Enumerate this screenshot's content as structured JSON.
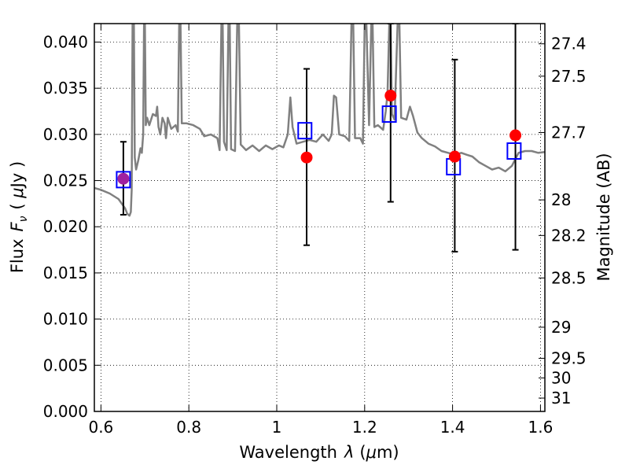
{
  "chart_data": {
    "type": "scatter",
    "xlabel": {
      "prefix": "Wavelength",
      "variable": "λ",
      "unit_open": "(",
      "unit_mu": "μ",
      "unit_rest": "m)"
    },
    "ylabel": {
      "prefix": "Flux",
      "variable": "F",
      "subscript": "ν",
      "unit_open": "( ",
      "unit_mu": "μ",
      "unit_rest": "Jy )"
    },
    "y2label": "Magnitude (AB)",
    "xlim": [
      0.585,
      1.61
    ],
    "ylim": [
      0.0,
      0.042
    ],
    "grid": true,
    "x_ticks": [
      {
        "value": 0.6,
        "label": "0.6"
      },
      {
        "value": 0.8,
        "label": "0.8"
      },
      {
        "value": 1.0,
        "label": "1"
      },
      {
        "value": 1.2,
        "label": "1.2"
      },
      {
        "value": 1.4,
        "label": "1.4"
      },
      {
        "value": 1.6,
        "label": "1.6"
      }
    ],
    "y_ticks": [
      {
        "value": 0.0,
        "label": "0.000"
      },
      {
        "value": 0.005,
        "label": "0.005"
      },
      {
        "value": 0.01,
        "label": "0.010"
      },
      {
        "value": 0.015,
        "label": "0.015"
      },
      {
        "value": 0.02,
        "label": "0.020"
      },
      {
        "value": 0.025,
        "label": "0.025"
      },
      {
        "value": 0.03,
        "label": "0.030"
      },
      {
        "value": 0.035,
        "label": "0.035"
      },
      {
        "value": 0.04,
        "label": "0.040"
      }
    ],
    "mag_ticks": [
      {
        "mag": 27.4,
        "label": "27.4"
      },
      {
        "mag": 27.5,
        "label": "27.5"
      },
      {
        "mag": 27.7,
        "label": "27.7"
      },
      {
        "mag": 28.0,
        "label": "28"
      },
      {
        "mag": 28.2,
        "label": "28.2"
      },
      {
        "mag": 28.5,
        "label": "28.5"
      },
      {
        "mag": 29.0,
        "label": "29"
      },
      {
        "mag": 29.5,
        "label": "29.5"
      },
      {
        "mag": 30.0,
        "label": "30"
      },
      {
        "mag": 31.0,
        "label": "31"
      }
    ],
    "colors": {
      "model": "#808080",
      "observed": "#ff0000",
      "model_band": "#0000ff",
      "error": "#000000",
      "overlap": "#a020a0"
    },
    "observed": [
      {
        "x": 0.651,
        "y": 0.0252,
        "yerr_low": 0.0213,
        "yerr_high": 0.0292
      },
      {
        "x": 1.068,
        "y": 0.0275,
        "yerr_low": 0.018,
        "yerr_high": 0.0371
      },
      {
        "x": 1.259,
        "y": 0.0342,
        "yerr_low": 0.0227,
        "yerr_high": 0.042
      },
      {
        "x": 1.405,
        "y": 0.0276,
        "yerr_low": 0.0173,
        "yerr_high": 0.0381
      },
      {
        "x": 1.543,
        "y": 0.0299,
        "yerr_low": 0.0175,
        "yerr_high": 0.042
      }
    ],
    "model_bands": [
      {
        "x": 0.651,
        "y": 0.0251
      },
      {
        "x": 1.064,
        "y": 0.0304
      },
      {
        "x": 1.256,
        "y": 0.0322
      },
      {
        "x": 1.402,
        "y": 0.0265
      },
      {
        "x": 1.54,
        "y": 0.0282
      }
    ],
    "model_spectrum": [
      [
        0.585,
        0.0242
      ],
      [
        0.6,
        0.024
      ],
      [
        0.62,
        0.0236
      ],
      [
        0.64,
        0.023
      ],
      [
        0.655,
        0.022
      ],
      [
        0.66,
        0.0214
      ],
      [
        0.665,
        0.0212
      ],
      [
        0.668,
        0.0216
      ],
      [
        0.67,
        0.024
      ],
      [
        0.672,
        0.042
      ],
      [
        0.675,
        0.042
      ],
      [
        0.677,
        0.0275
      ],
      [
        0.68,
        0.0262
      ],
      [
        0.685,
        0.0272
      ],
      [
        0.69,
        0.0285
      ],
      [
        0.693,
        0.028
      ],
      [
        0.696,
        0.03
      ],
      [
        0.698,
        0.042
      ],
      [
        0.7,
        0.042
      ],
      [
        0.702,
        0.031
      ],
      [
        0.705,
        0.0318
      ],
      [
        0.71,
        0.031
      ],
      [
        0.718,
        0.0322
      ],
      [
        0.725,
        0.032
      ],
      [
        0.728,
        0.033
      ],
      [
        0.731,
        0.0308
      ],
      [
        0.735,
        0.03
      ],
      [
        0.74,
        0.0318
      ],
      [
        0.745,
        0.0312
      ],
      [
        0.748,
        0.0296
      ],
      [
        0.752,
        0.0318
      ],
      [
        0.76,
        0.0306
      ],
      [
        0.77,
        0.031
      ],
      [
        0.775,
        0.0303
      ],
      [
        0.778,
        0.042
      ],
      [
        0.781,
        0.042
      ],
      [
        0.784,
        0.0312
      ],
      [
        0.795,
        0.0312
      ],
      [
        0.81,
        0.031
      ],
      [
        0.825,
        0.0306
      ],
      [
        0.835,
        0.0298
      ],
      [
        0.85,
        0.03
      ],
      [
        0.865,
        0.0296
      ],
      [
        0.87,
        0.0283
      ],
      [
        0.874,
        0.042
      ],
      [
        0.877,
        0.042
      ],
      [
        0.88,
        0.0292
      ],
      [
        0.886,
        0.0283
      ],
      [
        0.89,
        0.042
      ],
      [
        0.893,
        0.042
      ],
      [
        0.896,
        0.0284
      ],
      [
        0.905,
        0.0282
      ],
      [
        0.91,
        0.042
      ],
      [
        0.914,
        0.042
      ],
      [
        0.918,
        0.0289
      ],
      [
        0.93,
        0.0283
      ],
      [
        0.945,
        0.0288
      ],
      [
        0.96,
        0.0282
      ],
      [
        0.975,
        0.0288
      ],
      [
        0.99,
        0.0284
      ],
      [
        1.005,
        0.0288
      ],
      [
        1.015,
        0.0286
      ],
      [
        1.025,
        0.03
      ],
      [
        1.031,
        0.034
      ],
      [
        1.036,
        0.0308
      ],
      [
        1.045,
        0.029
      ],
      [
        1.06,
        0.0292
      ],
      [
        1.075,
        0.0294
      ],
      [
        1.09,
        0.0292
      ],
      [
        1.105,
        0.03
      ],
      [
        1.118,
        0.0293
      ],
      [
        1.125,
        0.03
      ],
      [
        1.13,
        0.0342
      ],
      [
        1.135,
        0.034
      ],
      [
        1.142,
        0.03
      ],
      [
        1.155,
        0.0298
      ],
      [
        1.165,
        0.0293
      ],
      [
        1.17,
        0.042
      ],
      [
        1.174,
        0.042
      ],
      [
        1.178,
        0.0296
      ],
      [
        1.19,
        0.0296
      ],
      [
        1.196,
        0.029
      ],
      [
        1.2,
        0.042
      ],
      [
        1.204,
        0.042
      ],
      [
        1.21,
        0.031
      ],
      [
        1.215,
        0.042
      ],
      [
        1.218,
        0.042
      ],
      [
        1.222,
        0.0308
      ],
      [
        1.23,
        0.031
      ],
      [
        1.242,
        0.0305
      ],
      [
        1.248,
        0.0325
      ],
      [
        1.252,
        0.0345
      ],
      [
        1.256,
        0.042
      ],
      [
        1.259,
        0.042
      ],
      [
        1.262,
        0.0322
      ],
      [
        1.268,
        0.0316
      ],
      [
        1.275,
        0.042
      ],
      [
        1.279,
        0.042
      ],
      [
        1.283,
        0.0318
      ],
      [
        1.295,
        0.0316
      ],
      [
        1.303,
        0.033
      ],
      [
        1.31,
        0.032
      ],
      [
        1.32,
        0.0302
      ],
      [
        1.33,
        0.0296
      ],
      [
        1.345,
        0.029
      ],
      [
        1.36,
        0.0287
      ],
      [
        1.375,
        0.0282
      ],
      [
        1.39,
        0.028
      ],
      [
        1.405,
        0.0278
      ],
      [
        1.42,
        0.028
      ],
      [
        1.432,
        0.0278
      ],
      [
        1.445,
        0.0276
      ],
      [
        1.46,
        0.027
      ],
      [
        1.475,
        0.0266
      ],
      [
        1.49,
        0.0262
      ],
      [
        1.505,
        0.0264
      ],
      [
        1.52,
        0.026
      ],
      [
        1.535,
        0.0266
      ],
      [
        1.55,
        0.028
      ],
      [
        1.565,
        0.0282
      ],
      [
        1.58,
        0.0282
      ],
      [
        1.595,
        0.028
      ],
      [
        1.61,
        0.0281
      ]
    ]
  }
}
